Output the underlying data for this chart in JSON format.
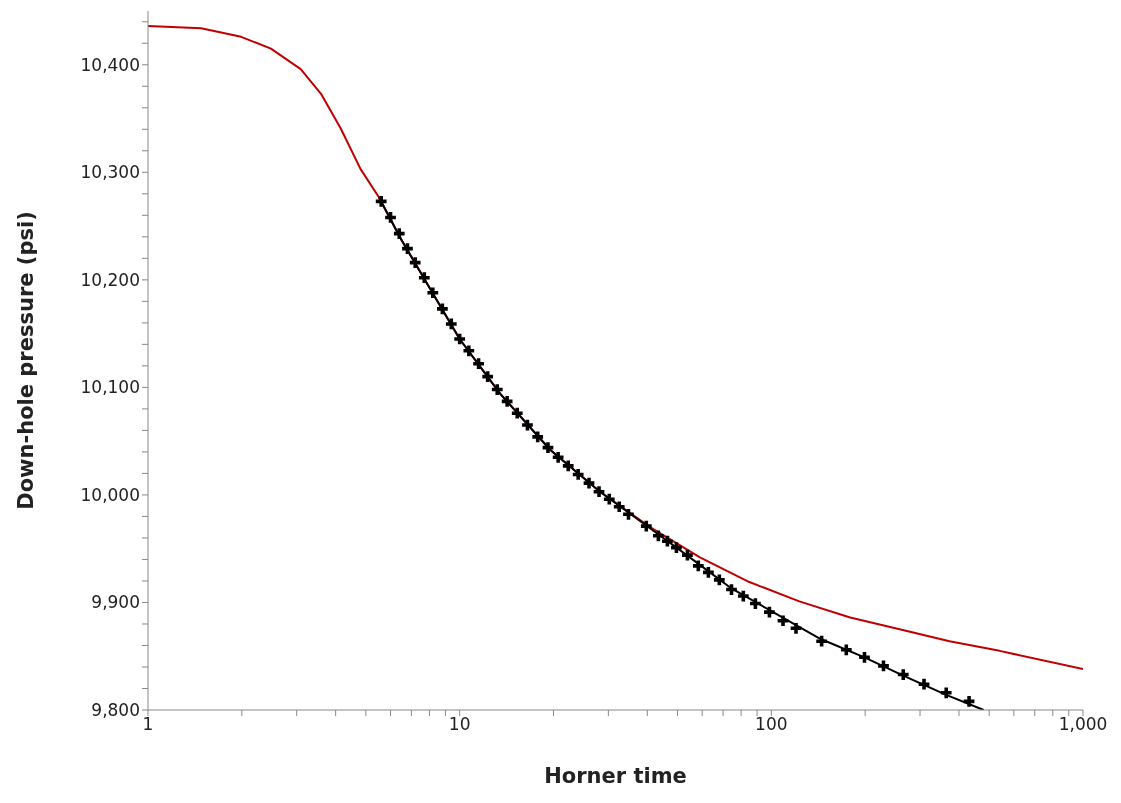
{
  "chart_data": {
    "type": "line",
    "xlabel": "Horner time",
    "ylabel": "Down-hole pressure (psi)",
    "log": "x",
    "xlim": [
      1,
      1000
    ],
    "xticks": [
      {
        "value": 1,
        "label": "1"
      },
      {
        "value": 2,
        "label": null
      },
      {
        "value": 3,
        "label": null
      },
      {
        "value": 4,
        "label": null
      },
      {
        "value": 5,
        "label": null
      },
      {
        "value": 6,
        "label": null
      },
      {
        "value": 7,
        "label": null
      },
      {
        "value": 8,
        "label": null
      },
      {
        "value": 9,
        "label": null
      },
      {
        "value": 10,
        "label": "10"
      },
      {
        "value": 20,
        "label": null
      },
      {
        "value": 30,
        "label": null
      },
      {
        "value": 40,
        "label": null
      },
      {
        "value": 50,
        "label": null
      },
      {
        "value": 60,
        "label": null
      },
      {
        "value": 70,
        "label": null
      },
      {
        "value": 80,
        "label": null
      },
      {
        "value": 90,
        "label": null
      },
      {
        "value": 100,
        "label": "100"
      },
      {
        "value": 200,
        "label": null
      },
      {
        "value": 300,
        "label": null
      },
      {
        "value": 400,
        "label": null
      },
      {
        "value": 500,
        "label": null
      },
      {
        "value": 600,
        "label": null
      },
      {
        "value": 700,
        "label": null
      },
      {
        "value": 800,
        "label": null
      },
      {
        "value": 900,
        "label": null
      },
      {
        "value": 1000,
        "label": "1,000"
      }
    ],
    "ylim": [
      9800,
      10450
    ],
    "yticks": [
      {
        "value": 9800,
        "label": "9,800"
      },
      {
        "value": 9820,
        "label": null
      },
      {
        "value": 9840,
        "label": null
      },
      {
        "value": 9860,
        "label": null
      },
      {
        "value": 9880,
        "label": null
      },
      {
        "value": 9900,
        "label": "9,900"
      },
      {
        "value": 9920,
        "label": null
      },
      {
        "value": 9940,
        "label": null
      },
      {
        "value": 9960,
        "label": null
      },
      {
        "value": 9980,
        "label": null
      },
      {
        "value": 10000,
        "label": "10,000"
      },
      {
        "value": 10020,
        "label": null
      },
      {
        "value": 10040,
        "label": null
      },
      {
        "value": 10060,
        "label": null
      },
      {
        "value": 10080,
        "label": null
      },
      {
        "value": 10100,
        "label": "10,100"
      },
      {
        "value": 10120,
        "label": null
      },
      {
        "value": 10140,
        "label": null
      },
      {
        "value": 10160,
        "label": null
      },
      {
        "value": 10180,
        "label": null
      },
      {
        "value": 10200,
        "label": "10,200"
      },
      {
        "value": 10220,
        "label": null
      },
      {
        "value": 10240,
        "label": null
      },
      {
        "value": 10260,
        "label": null
      },
      {
        "value": 10280,
        "label": null
      },
      {
        "value": 10300,
        "label": "10,300"
      },
      {
        "value": 10320,
        "label": null
      },
      {
        "value": 10340,
        "label": null
      },
      {
        "value": 10360,
        "label": null
      },
      {
        "value": 10380,
        "label": null
      },
      {
        "value": 10400,
        "label": "10,400"
      },
      {
        "value": 10420,
        "label": null
      },
      {
        "value": 10440,
        "label": null
      }
    ],
    "grid": false,
    "line_style": "solid",
    "series": [
      {
        "type": "line",
        "color": "#c00000",
        "x": [
          1,
          1.48,
          1.99,
          2.48,
          3.09,
          3.59,
          4.15,
          4.81,
          5.5,
          6.48,
          8.1,
          10,
          13.5,
          19.5,
          28.2,
          40.8,
          59,
          85,
          123,
          179,
          258,
          373,
          540,
          1000
        ],
        "values": [
          10436,
          10434,
          10426,
          10415,
          10396,
          10373,
          10341,
          10303,
          10277,
          10238,
          10190,
          10145,
          10094,
          10042,
          10003,
          9970,
          9942,
          9919,
          9901,
          9886,
          9875,
          9864,
          9855,
          9838
        ]
      },
      {
        "type": "line",
        "color": "#000000",
        "x": [
          5.5,
          6.48,
          8.1,
          10,
          13.5,
          19.5,
          28.2,
          40.8,
          53,
          74.5,
          100,
          144,
          199,
          265,
          364,
          480
        ],
        "values": [
          10277,
          10238,
          10190,
          10145,
          10094,
          10042,
          10003,
          9969,
          9945,
          9913,
          9892,
          9866,
          9849,
          9832,
          9814,
          9800
        ]
      },
      {
        "type": "scatter",
        "color": "#000000",
        "marker": "cross",
        "x": [
          5.6,
          6,
          6.4,
          6.8,
          7.2,
          7.7,
          8.2,
          8.8,
          9.4,
          10,
          10.7,
          11.5,
          12.3,
          13.2,
          14.2,
          15.3,
          16.5,
          17.8,
          19.2,
          20.7,
          22.3,
          24,
          26,
          28,
          30.2,
          32.5,
          34.8,
          39.7,
          43.4,
          46.4,
          49.6,
          53.8,
          58.3,
          62.8,
          68.1,
          74.5,
          81.3,
          88.9,
          98.6,
          109,
          120,
          145,
          174,
          199,
          229,
          265,
          309,
          364,
          431
        ],
        "values": [
          10273,
          10258,
          10243,
          10229,
          10216,
          10202,
          10188,
          10173,
          10159,
          10145,
          10134,
          10122,
          10110,
          10098,
          10087,
          10076,
          10065,
          10054,
          10044,
          10035,
          10027,
          10019,
          10011,
          10003,
          9996,
          9989,
          9982,
          9971,
          9962,
          9957,
          9951,
          9944,
          9934,
          9928,
          9921,
          9912,
          9906,
          9899,
          9891,
          9883,
          9876,
          9864,
          9856,
          9849,
          9841,
          9833,
          9824,
          9816,
          9808
        ]
      }
    ]
  }
}
